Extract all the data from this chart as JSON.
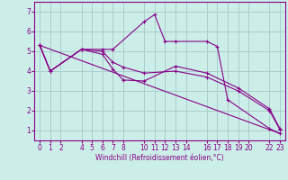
{
  "xlabel": "Windchill (Refroidissement éolien,°C)",
  "background_color": "#cceee8",
  "grid_color": "#aacccc",
  "line_color": "#880088",
  "xlim": [
    -0.5,
    23.5
  ],
  "ylim": [
    0.5,
    7.5
  ],
  "xticks": [
    0,
    1,
    2,
    4,
    5,
    6,
    7,
    8,
    10,
    11,
    12,
    13,
    14,
    16,
    17,
    18,
    19,
    20,
    22,
    23
  ],
  "yticks": [
    1,
    2,
    3,
    4,
    5,
    6,
    7
  ],
  "line1_x": [
    0,
    1,
    4,
    6,
    7,
    10,
    11,
    12,
    13,
    16,
    17,
    18,
    22,
    23
  ],
  "line1_y": [
    5.3,
    4.0,
    5.1,
    5.1,
    5.1,
    6.5,
    6.85,
    5.5,
    5.5,
    5.5,
    5.25,
    2.55,
    1.1,
    0.85
  ],
  "line2_x": [
    0,
    1,
    4,
    6,
    7,
    8,
    10,
    13,
    16,
    19,
    22,
    23
  ],
  "line2_y": [
    5.3,
    4.0,
    5.1,
    4.85,
    4.1,
    3.55,
    3.5,
    4.25,
    3.9,
    3.15,
    2.1,
    1.1
  ],
  "line3_x": [
    0,
    1,
    4,
    6,
    7,
    8,
    10,
    13,
    16,
    19,
    22,
    23
  ],
  "line3_y": [
    5.3,
    4.0,
    5.1,
    5.0,
    4.45,
    4.2,
    3.9,
    4.0,
    3.7,
    3.0,
    2.0,
    1.05
  ],
  "line4_x": [
    0,
    23
  ],
  "line4_y": [
    5.3,
    0.85
  ]
}
